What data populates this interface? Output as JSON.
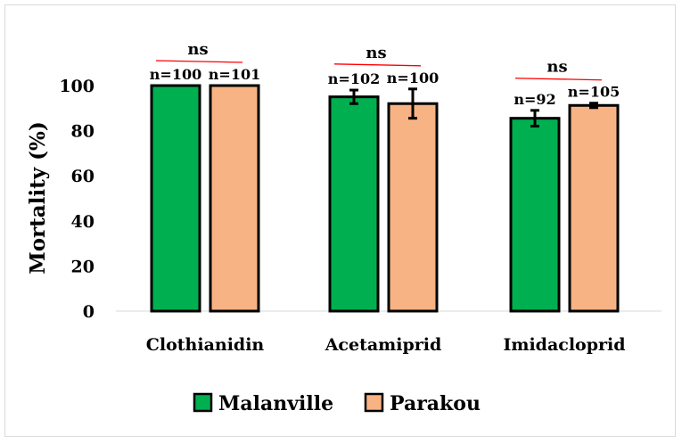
{
  "chart_data": {
    "type": "bar",
    "title": "",
    "xlabel": "",
    "ylabel": "Mortality (%)",
    "ylim": [
      0,
      100
    ],
    "yticks": [
      0,
      20,
      40,
      60,
      80,
      100
    ],
    "grid": false,
    "legend_placement": "bottom",
    "categories": [
      "Clothianidin",
      "Acetamiprid",
      "Imidacloprid"
    ],
    "series": [
      {
        "name": "Malanville",
        "color": "#00b050",
        "values": [
          100,
          95,
          85.5
        ],
        "errors": [
          0,
          3,
          3.5
        ],
        "n_labels": [
          "n=100",
          "n=102",
          "n=92"
        ]
      },
      {
        "name": "Parakou",
        "color": "#f8b384",
        "values": [
          100,
          92,
          91.2
        ],
        "errors": [
          0,
          6.5,
          1
        ],
        "n_labels": [
          "n=101",
          "n=100",
          "n=105"
        ]
      }
    ],
    "significance": [
      "ns",
      "ns",
      "ns"
    ],
    "significance_line_color": "#ff0000"
  }
}
